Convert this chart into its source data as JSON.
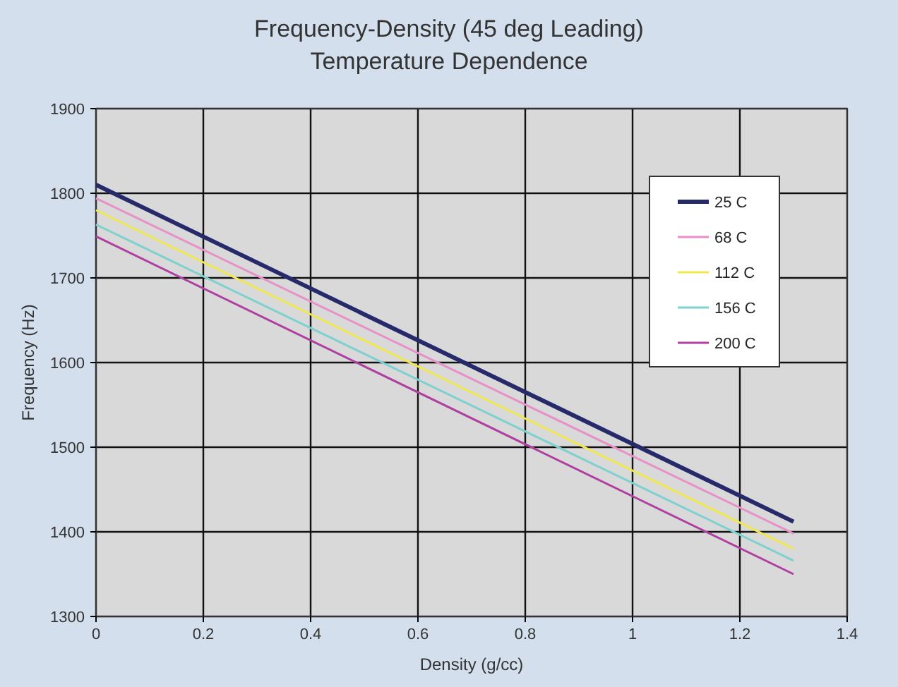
{
  "chart_data": {
    "type": "line",
    "title": "Frequency-Density (45 deg Leading)\nTemperature Dependence",
    "xlabel": "Density (g/cc)",
    "ylabel": "Frequency (Hz)",
    "x": [
      0,
      1.3
    ],
    "series": [
      {
        "name": "25 C",
        "color": "#262a6a",
        "values": [
          1810,
          1412
        ]
      },
      {
        "name": "68 C",
        "color": "#e890c8",
        "values": [
          1794,
          1398
        ]
      },
      {
        "name": "112 C",
        "color": "#f0e850",
        "values": [
          1780,
          1380
        ]
      },
      {
        "name": "156 C",
        "color": "#80d0d0",
        "values": [
          1763,
          1366
        ]
      },
      {
        "name": "200 C",
        "color": "#b040a0",
        "values": [
          1749,
          1350
        ]
      }
    ],
    "xlim": [
      0,
      1.4
    ],
    "xticks": [
      0,
      0.2,
      0.4,
      0.6,
      0.8,
      1,
      1.2,
      1.4
    ],
    "ylim": [
      1300,
      1900
    ],
    "yticks": [
      1300,
      1400,
      1500,
      1600,
      1700,
      1800,
      1900
    ],
    "grid": true,
    "legend": "top right",
    "marker": "none",
    "line_style": "solid"
  }
}
